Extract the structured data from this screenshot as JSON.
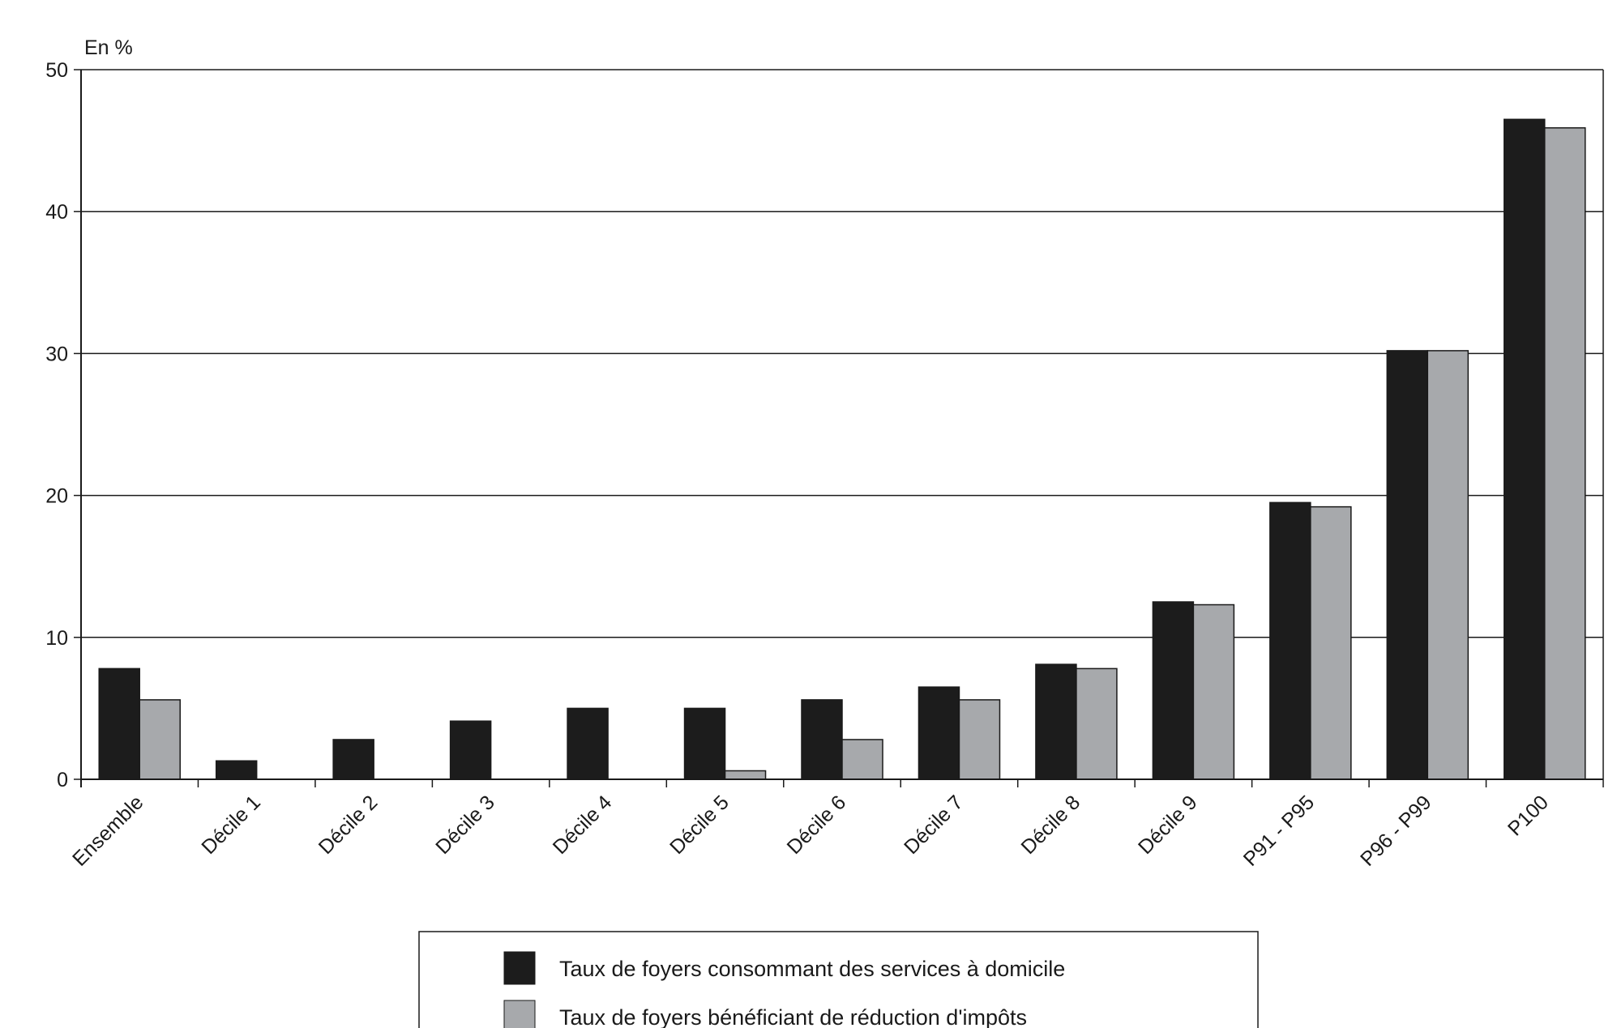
{
  "chart_data": {
    "type": "bar",
    "unit_label": "En %",
    "categories": [
      "Ensemble",
      "Décile 1",
      "Décile 2",
      "Décile 3",
      "Décile 4",
      "Décile 5",
      "Décile 6",
      "Décile 7",
      "Décile 8",
      "Décile 9",
      "P91 - P95",
      "P96 - P99",
      "P100"
    ],
    "series": [
      {
        "name": "Taux de foyers consommant des services à domicile",
        "color": "#1c1c1c",
        "values": [
          7.8,
          1.3,
          2.8,
          4.1,
          5.0,
          5.0,
          5.6,
          6.5,
          8.1,
          12.5,
          19.5,
          30.2,
          46.5
        ]
      },
      {
        "name": "Taux de foyers bénéficiant de réduction d'impôts",
        "color": "#a7a9ac",
        "values": [
          5.6,
          0,
          0,
          0,
          0,
          0.6,
          2.8,
          5.6,
          7.8,
          12.3,
          19.2,
          30.2,
          45.9
        ]
      }
    ],
    "ylim": [
      0,
      50
    ],
    "yticks": [
      0,
      10,
      20,
      30,
      40,
      50
    ],
    "grid": true,
    "legend_position": "bottom-center"
  }
}
